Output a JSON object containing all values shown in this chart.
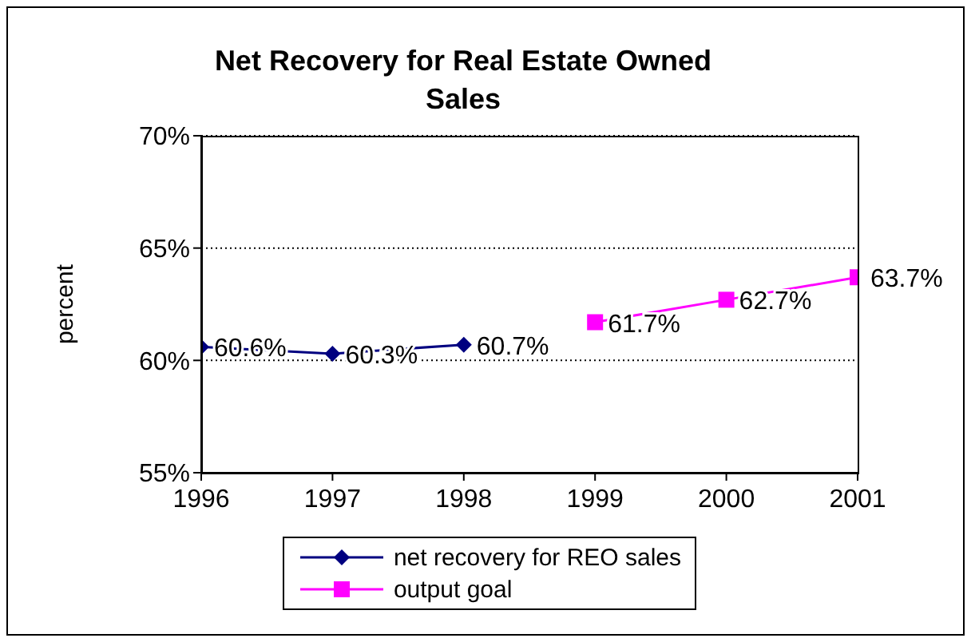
{
  "chart_data": {
    "type": "line",
    "title": "Net Recovery for Real Estate Owned Sales",
    "ylabel": "percent",
    "xlim": [
      1996,
      2001
    ],
    "xticks": [
      1996,
      1997,
      1998,
      1999,
      2000,
      2001
    ],
    "ylim": [
      55,
      70
    ],
    "yticks": [
      {
        "value": 55,
        "label": "55%"
      },
      {
        "value": 60,
        "label": "60%"
      },
      {
        "value": 65,
        "label": "65%"
      },
      {
        "value": 70,
        "label": "70%"
      }
    ],
    "grid": "y",
    "legend": "bottom",
    "line_style": "solid",
    "series": [
      {
        "name": "net recovery for REO sales",
        "color": "#000080",
        "marker": "diamond",
        "x": [
          1996,
          1997,
          1998
        ],
        "values": [
          60.6,
          60.3,
          60.7
        ],
        "value_labels": [
          "60.6%",
          "60.3%",
          "60.7%"
        ]
      },
      {
        "name": "output goal",
        "color": "#ff00ff",
        "marker": "square",
        "x": [
          1999,
          2000,
          2001
        ],
        "values": [
          61.7,
          62.7,
          63.7
        ],
        "value_labels": [
          "61.7%",
          "62.7%",
          "63.7%"
        ]
      }
    ]
  }
}
